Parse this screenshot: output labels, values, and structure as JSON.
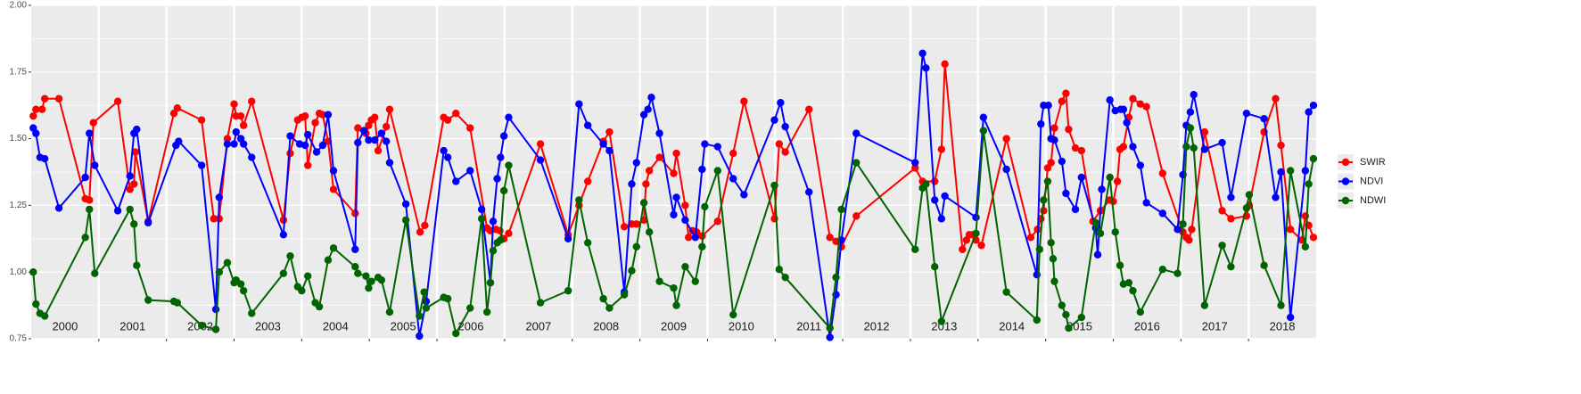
{
  "chart_data": {
    "type": "line",
    "xlim": [
      2000,
      2019
    ],
    "ylim": [
      0.75,
      2.0
    ],
    "yticks": [
      {
        "value": 0.75,
        "label": "0.75"
      },
      {
        "value": 1.0,
        "label": "1.00"
      },
      {
        "value": 1.25,
        "label": "1.25"
      },
      {
        "value": 1.5,
        "label": "1.50"
      },
      {
        "value": 1.75,
        "label": "1.75"
      },
      {
        "value": 2.0,
        "label": "2.00"
      }
    ],
    "xticks": [
      2001,
      2002,
      2003,
      2004,
      2005,
      2006,
      2007,
      2008,
      2009,
      2010,
      2011,
      2012,
      2013,
      2014,
      2015,
      2016,
      2017,
      2018
    ],
    "year_labels": [
      {
        "value": 2000.5,
        "label": "2000"
      },
      {
        "value": 2001.5,
        "label": "2001"
      },
      {
        "value": 2002.5,
        "label": "2002"
      },
      {
        "value": 2003.5,
        "label": "2003"
      },
      {
        "value": 2004.5,
        "label": "2004"
      },
      {
        "value": 2005.5,
        "label": "2005"
      },
      {
        "value": 2006.5,
        "label": "2006"
      },
      {
        "value": 2007.5,
        "label": "2007"
      },
      {
        "value": 2008.5,
        "label": "2008"
      },
      {
        "value": 2009.5,
        "label": "2009"
      },
      {
        "value": 2010.5,
        "label": "2010"
      },
      {
        "value": 2011.5,
        "label": "2011"
      },
      {
        "value": 2012.5,
        "label": "2012"
      },
      {
        "value": 2013.5,
        "label": "2013"
      },
      {
        "value": 2014.5,
        "label": "2014"
      },
      {
        "value": 2015.5,
        "label": "2015"
      },
      {
        "value": 2016.5,
        "label": "2016"
      },
      {
        "value": 2017.5,
        "label": "2017"
      },
      {
        "value": 2018.5,
        "label": "2018"
      }
    ],
    "grid": true,
    "legend": "right",
    "series": [
      {
        "name": "SWIR",
        "color": "#ff0000",
        "x": [
          2000.03,
          2000.07,
          2000.16,
          2000.2,
          2000.41,
          2000.8,
          2000.86,
          2000.92,
          2001.28,
          2001.46,
          2001.52,
          2001.54,
          2001.73,
          2002.11,
          2002.16,
          2002.52,
          2002.7,
          2002.78,
          2002.9,
          2003.0,
          2003.03,
          2003.1,
          2003.14,
          2003.26,
          2003.73,
          2003.83,
          2003.94,
          2004.0,
          2004.05,
          2004.09,
          2004.2,
          2004.26,
          2004.31,
          2004.39,
          2004.47,
          2004.79,
          2004.83,
          2004.95,
          2004.99,
          2005.03,
          2005.08,
          2005.13,
          2005.25,
          2005.3,
          2005.75,
          2005.82,
          2006.1,
          2006.16,
          2006.28,
          2006.49,
          2006.74,
          2006.79,
          2006.87,
          2006.93,
          2006.99,
          2007.06,
          2007.53,
          2007.94,
          2008.1,
          2008.23,
          2008.46,
          2008.55,
          2008.77,
          2008.88,
          2008.95,
          2009.06,
          2009.09,
          2009.14,
          2009.29,
          2009.5,
          2009.54,
          2009.67,
          2009.72,
          2009.78,
          2009.84,
          2009.92,
          2010.15,
          2010.38,
          2010.54,
          2010.99,
          2011.06,
          2011.15,
          2011.5,
          2011.81,
          2011.9,
          2011.98,
          2012.2,
          2013.07,
          2013.18,
          2013.36,
          2013.46,
          2013.51,
          2013.77,
          2013.83,
          2013.87,
          2013.92,
          2013.97,
          2014.05,
          2014.42,
          2014.78,
          2014.88,
          2014.93,
          2014.97,
          2015.03,
          2015.08,
          2015.13,
          2015.24,
          2015.3,
          2015.34,
          2015.44,
          2015.53,
          2015.7,
          2015.81,
          2015.95,
          2016.0,
          2016.06,
          2016.1,
          2016.15,
          2016.23,
          2016.29,
          2016.4,
          2016.49,
          2016.73,
          2017.03,
          2017.08,
          2017.12,
          2017.16,
          2017.35,
          2017.61,
          2017.74,
          2017.97,
          2018.01,
          2018.23,
          2018.4,
          2018.48,
          2018.62,
          2018.79,
          2018.84,
          2018.89,
          2018.96
        ],
        "values": [
          1.585,
          1.61,
          1.61,
          1.65,
          1.65,
          1.275,
          1.27,
          1.56,
          1.64,
          1.31,
          1.33,
          1.45,
          1.19,
          1.595,
          1.615,
          1.57,
          1.2,
          1.2,
          1.5,
          1.63,
          1.585,
          1.585,
          1.55,
          1.64,
          1.195,
          1.445,
          1.57,
          1.58,
          1.585,
          1.4,
          1.56,
          1.595,
          1.59,
          1.49,
          1.31,
          1.22,
          1.54,
          1.52,
          1.55,
          1.57,
          1.58,
          1.455,
          1.545,
          1.61,
          1.15,
          1.175,
          1.58,
          1.57,
          1.595,
          1.54,
          1.165,
          1.155,
          1.16,
          1.155,
          1.125,
          1.145,
          1.48,
          1.14,
          1.25,
          1.34,
          1.49,
          1.525,
          1.17,
          1.18,
          1.18,
          1.195,
          1.33,
          1.38,
          1.43,
          1.37,
          1.445,
          1.25,
          1.13,
          1.155,
          1.15,
          1.135,
          1.19,
          1.445,
          1.64,
          1.2,
          1.48,
          1.45,
          1.61,
          1.13,
          1.115,
          1.095,
          1.21,
          1.39,
          1.34,
          1.34,
          1.46,
          1.78,
          1.085,
          1.12,
          1.14,
          1.14,
          1.12,
          1.1,
          1.5,
          1.13,
          1.16,
          1.2,
          1.23,
          1.39,
          1.41,
          1.54,
          1.64,
          1.67,
          1.535,
          1.465,
          1.455,
          1.19,
          1.23,
          1.27,
          1.265,
          1.34,
          1.46,
          1.47,
          1.58,
          1.65,
          1.63,
          1.62,
          1.37,
          1.15,
          1.13,
          1.12,
          1.16,
          1.525,
          1.23,
          1.2,
          1.21,
          1.25,
          1.525,
          1.65,
          1.475,
          1.16,
          1.12,
          1.21,
          1.175,
          1.13
        ]
      },
      {
        "name": "NDVI",
        "color": "#0000ff",
        "x": [
          2000.03,
          2000.07,
          2000.13,
          2000.2,
          2000.41,
          2000.8,
          2000.86,
          2000.94,
          2001.28,
          2001.46,
          2001.52,
          2001.56,
          2001.73,
          2002.14,
          2002.18,
          2002.52,
          2002.73,
          2002.78,
          2002.9,
          2003.0,
          2003.03,
          2003.1,
          2003.14,
          2003.26,
          2003.73,
          2003.83,
          2003.97,
          2004.05,
          2004.09,
          2004.22,
          2004.31,
          2004.39,
          2004.47,
          2004.79,
          2004.83,
          2004.92,
          2004.99,
          2005.08,
          2005.18,
          2005.25,
          2005.3,
          2005.54,
          2005.74,
          2005.84,
          2006.1,
          2006.16,
          2006.28,
          2006.49,
          2006.66,
          2006.79,
          2006.83,
          2006.89,
          2006.94,
          2006.99,
          2007.06,
          2007.53,
          2007.94,
          2008.1,
          2008.23,
          2008.46,
          2008.55,
          2008.77,
          2008.88,
          2008.95,
          2009.06,
          2009.12,
          2009.17,
          2009.29,
          2009.5,
          2009.54,
          2009.67,
          2009.82,
          2009.92,
          2009.96,
          2010.15,
          2010.38,
          2010.54,
          2010.99,
          2011.08,
          2011.15,
          2011.5,
          2011.81,
          2011.9,
          2011.98,
          2012.2,
          2013.07,
          2013.18,
          2013.23,
          2013.36,
          2013.46,
          2013.51,
          2013.97,
          2014.08,
          2014.42,
          2014.87,
          2014.93,
          2014.97,
          2015.04,
          2015.08,
          2015.13,
          2015.24,
          2015.3,
          2015.44,
          2015.53,
          2015.74,
          2015.77,
          2015.83,
          2015.95,
          2016.03,
          2016.11,
          2016.15,
          2016.2,
          2016.29,
          2016.4,
          2016.49,
          2016.73,
          2016.95,
          2017.03,
          2017.08,
          2017.14,
          2017.19,
          2017.35,
          2017.61,
          2017.74,
          2017.97,
          2018.23,
          2018.4,
          2018.48,
          2018.62,
          2018.84,
          2018.89,
          2018.96
        ],
        "values": [
          1.54,
          1.52,
          1.43,
          1.425,
          1.24,
          1.355,
          1.52,
          1.4,
          1.23,
          1.36,
          1.52,
          1.535,
          1.185,
          1.475,
          1.49,
          1.4,
          0.86,
          1.28,
          1.48,
          1.48,
          1.525,
          1.5,
          1.48,
          1.43,
          1.14,
          1.51,
          1.48,
          1.475,
          1.515,
          1.45,
          1.475,
          1.59,
          1.38,
          1.085,
          1.485,
          1.53,
          1.495,
          1.495,
          1.52,
          1.49,
          1.41,
          1.255,
          0.76,
          0.89,
          1.455,
          1.43,
          1.34,
          1.38,
          1.235,
          0.96,
          1.19,
          1.35,
          1.43,
          1.51,
          1.58,
          1.42,
          1.125,
          1.63,
          1.55,
          1.48,
          1.455,
          0.925,
          1.33,
          1.41,
          1.59,
          1.61,
          1.655,
          1.52,
          1.215,
          1.28,
          1.195,
          1.13,
          1.385,
          1.48,
          1.47,
          1.35,
          1.29,
          1.57,
          1.635,
          1.545,
          1.3,
          0.755,
          0.915,
          1.12,
          1.52,
          1.41,
          1.82,
          1.765,
          1.27,
          1.2,
          1.285,
          1.205,
          1.58,
          1.385,
          0.99,
          1.555,
          1.625,
          1.625,
          1.5,
          1.495,
          1.415,
          1.295,
          1.235,
          1.355,
          1.165,
          1.065,
          1.31,
          1.645,
          1.605,
          1.61,
          1.61,
          1.56,
          1.47,
          1.4,
          1.26,
          1.22,
          1.16,
          1.365,
          1.55,
          1.6,
          1.665,
          1.46,
          1.485,
          1.28,
          1.595,
          1.575,
          1.28,
          1.375,
          0.83,
          1.38,
          1.6,
          1.625
        ]
      },
      {
        "name": "NDWI",
        "color": "#006400",
        "x": [
          2000.03,
          2000.07,
          2000.13,
          2000.2,
          2000.8,
          2000.86,
          2000.94,
          2001.46,
          2001.52,
          2001.56,
          2001.73,
          2002.11,
          2002.16,
          2002.52,
          2002.73,
          2002.78,
          2002.9,
          2003.0,
          2003.03,
          2003.1,
          2003.14,
          2003.26,
          2003.73,
          2003.83,
          2003.94,
          2004.0,
          2004.09,
          2004.2,
          2004.26,
          2004.39,
          2004.47,
          2004.79,
          2004.83,
          2004.95,
          2004.99,
          2005.03,
          2005.13,
          2005.18,
          2005.3,
          2005.54,
          2005.74,
          2005.81,
          2005.84,
          2006.1,
          2006.16,
          2006.28,
          2006.49,
          2006.66,
          2006.74,
          2006.79,
          2006.83,
          2006.89,
          2006.94,
          2006.99,
          2007.06,
          2007.53,
          2007.94,
          2008.1,
          2008.23,
          2008.46,
          2008.55,
          2008.77,
          2008.88,
          2008.95,
          2009.06,
          2009.14,
          2009.29,
          2009.5,
          2009.54,
          2009.67,
          2009.82,
          2009.92,
          2009.96,
          2010.15,
          2010.38,
          2010.99,
          2011.06,
          2011.15,
          2011.81,
          2011.9,
          2011.98,
          2012.2,
          2013.07,
          2013.18,
          2013.23,
          2013.36,
          2013.46,
          2013.97,
          2014.08,
          2014.42,
          2014.87,
          2014.91,
          2014.97,
          2015.03,
          2015.08,
          2015.11,
          2015.13,
          2015.24,
          2015.3,
          2015.34,
          2015.53,
          2015.74,
          2015.81,
          2015.95,
          2016.03,
          2016.1,
          2016.15,
          2016.23,
          2016.29,
          2016.4,
          2016.73,
          2016.95,
          2017.03,
          2017.08,
          2017.14,
          2017.19,
          2017.35,
          2017.61,
          2017.74,
          2017.97,
          2018.01,
          2018.23,
          2018.48,
          2018.62,
          2018.84,
          2018.89,
          2018.96
        ],
        "values": [
          1.0,
          0.88,
          0.845,
          0.835,
          1.13,
          1.235,
          0.995,
          1.235,
          1.18,
          1.025,
          0.895,
          0.89,
          0.885,
          0.8,
          0.785,
          1.0,
          1.035,
          0.96,
          0.97,
          0.955,
          0.93,
          0.845,
          0.995,
          1.06,
          0.945,
          0.93,
          0.985,
          0.885,
          0.87,
          1.045,
          1.09,
          1.02,
          0.995,
          0.985,
          0.94,
          0.965,
          0.98,
          0.97,
          0.85,
          1.195,
          0.835,
          0.925,
          0.865,
          0.905,
          0.9,
          0.77,
          0.865,
          1.2,
          0.85,
          0.96,
          1.08,
          1.11,
          1.12,
          1.305,
          1.4,
          0.885,
          0.93,
          1.27,
          1.11,
          0.9,
          0.865,
          0.915,
          1.005,
          1.095,
          1.26,
          1.15,
          0.965,
          0.94,
          0.875,
          1.02,
          0.965,
          1.095,
          1.245,
          1.38,
          0.84,
          1.325,
          1.01,
          0.98,
          0.79,
          0.98,
          1.235,
          1.41,
          1.085,
          1.315,
          1.33,
          1.02,
          0.815,
          1.145,
          1.53,
          0.925,
          0.82,
          1.085,
          1.27,
          1.34,
          1.11,
          1.05,
          0.965,
          0.875,
          0.84,
          0.79,
          0.83,
          1.185,
          1.145,
          1.355,
          1.15,
          1.025,
          0.955,
          0.96,
          0.93,
          0.85,
          1.01,
          0.995,
          1.18,
          1.47,
          1.54,
          1.465,
          0.875,
          1.1,
          1.02,
          1.24,
          1.29,
          1.025,
          0.875,
          1.38,
          1.095,
          1.33,
          1.425
        ]
      }
    ]
  }
}
